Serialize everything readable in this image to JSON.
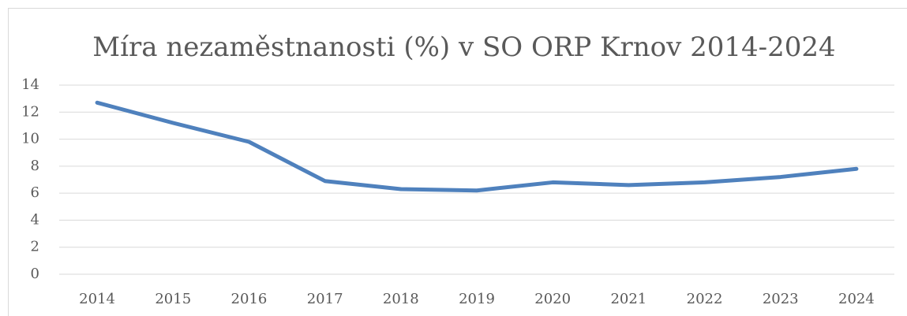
{
  "chart_data": {
    "type": "line",
    "title": "Míra nezaměstnanosti (%) v SO ORP Krnov 2014-2024",
    "categories": [
      "2014",
      "2015",
      "2016",
      "2017",
      "2018",
      "2019",
      "2020",
      "2021",
      "2022",
      "2023",
      "2024"
    ],
    "series": [
      {
        "name": "Míra nezaměstnanosti",
        "color": "#4f81bd",
        "values": [
          12.7,
          11.2,
          9.8,
          6.9,
          6.3,
          6.2,
          6.8,
          6.6,
          6.8,
          7.2,
          7.8
        ]
      }
    ],
    "ylim": [
      0,
      14
    ],
    "yticks": [
      0,
      2,
      4,
      6,
      8,
      10,
      12,
      14
    ],
    "grid": true,
    "legend": false
  }
}
